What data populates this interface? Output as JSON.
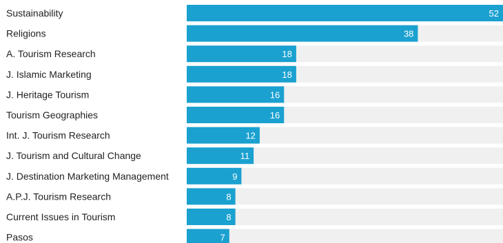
{
  "chart_data": {
    "type": "bar",
    "orientation": "horizontal",
    "categories": [
      "Sustainability",
      "Religions",
      "A. Tourism Research",
      "J. Islamic Marketing",
      "J. Heritage Tourism",
      "Tourism Geographies",
      "Int. J. Tourism Research",
      "J. Tourism and Cultural Change",
      "J. Destination Marketing Management",
      "A.P.J. Tourism Research",
      "Current Issues in Tourism",
      "Pasos"
    ],
    "values": [
      52,
      38,
      18,
      18,
      16,
      16,
      12,
      11,
      9,
      8,
      8,
      7
    ],
    "value_labels": [
      "52",
      "38",
      "18",
      "18",
      "16",
      "16",
      "12",
      "11",
      "9",
      "8",
      "8",
      "7"
    ],
    "xlim": [
      0,
      52
    ],
    "title": "",
    "xlabel": "",
    "ylabel": "",
    "grid": false,
    "legend": "none",
    "colors": {
      "bar": "#1ba1d0",
      "track": "#f0f0f0",
      "value_text": "#ffffff",
      "category_text": "#222222"
    }
  }
}
